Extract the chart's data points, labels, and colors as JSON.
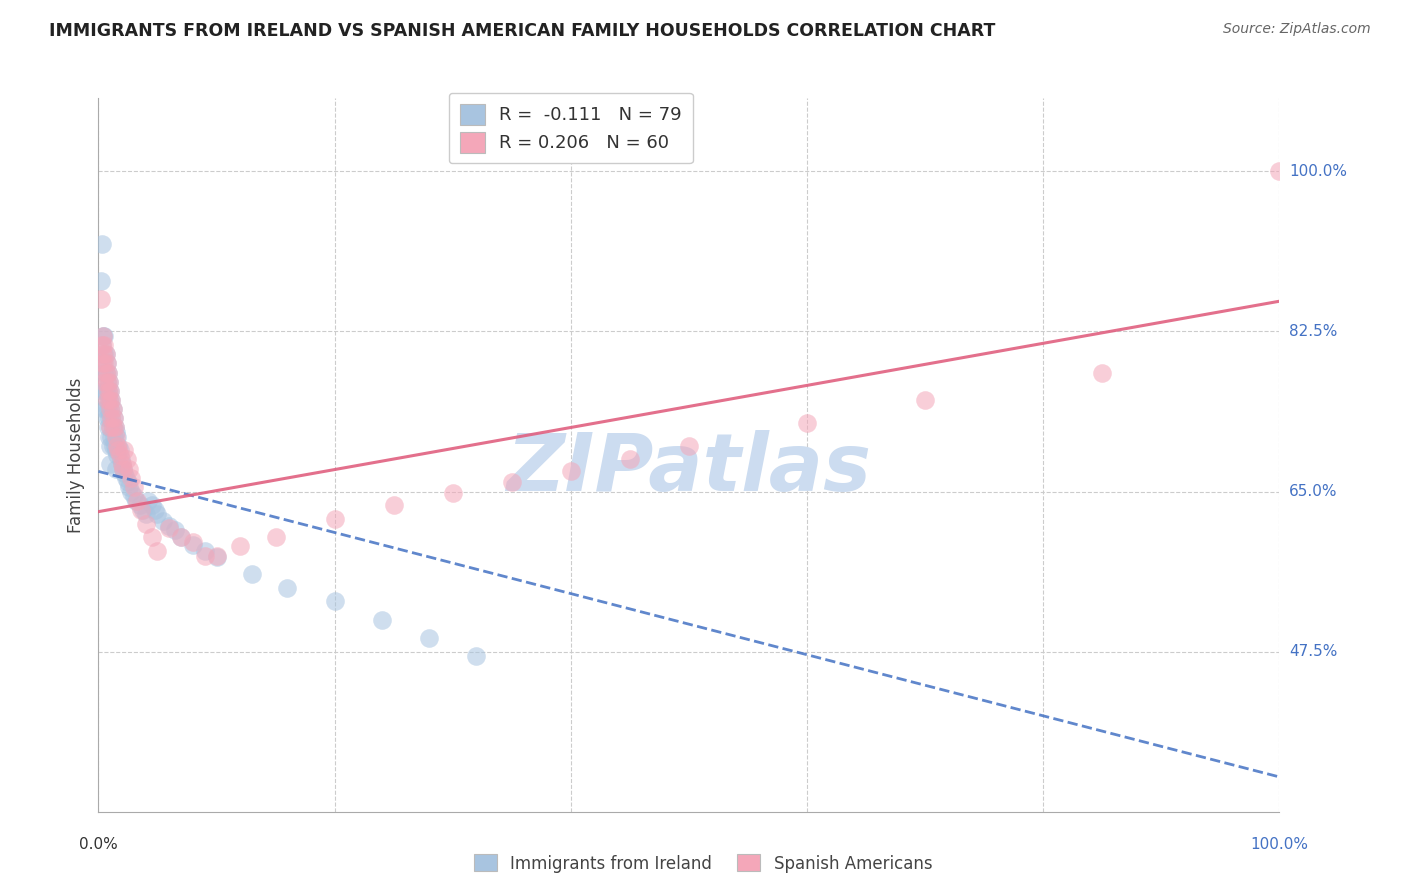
{
  "title": "IMMIGRANTS FROM IRELAND VS SPANISH AMERICAN FAMILY HOUSEHOLDS CORRELATION CHART",
  "source": "Source: ZipAtlas.com",
  "ylabel": "Family Households",
  "yticks": [
    "100.0%",
    "82.5%",
    "65.0%",
    "47.5%"
  ],
  "ytick_vals": [
    1.0,
    0.825,
    0.65,
    0.475
  ],
  "xlim": [
    0.0,
    1.0
  ],
  "ylim": [
    0.3,
    1.08
  ],
  "ireland_color": "#a8c4e0",
  "spanish_color": "#f4a7b9",
  "ireland_line_color": "#4472c4",
  "spanish_line_color": "#e06080",
  "watermark": "ZIPatlas",
  "watermark_color": "#ccdcf0",
  "ireland_line_x0": 0.0,
  "ireland_line_y0": 0.672,
  "ireland_line_x1": 1.0,
  "ireland_line_y1": 0.338,
  "spanish_line_x0": 0.0,
  "spanish_line_y0": 0.628,
  "spanish_line_x1": 1.0,
  "spanish_line_y1": 0.858,
  "ireland_pts_x": [
    0.002,
    0.003,
    0.003,
    0.004,
    0.004,
    0.004,
    0.005,
    0.005,
    0.005,
    0.005,
    0.005,
    0.006,
    0.006,
    0.006,
    0.006,
    0.007,
    0.007,
    0.007,
    0.007,
    0.008,
    0.008,
    0.008,
    0.008,
    0.009,
    0.009,
    0.009,
    0.009,
    0.01,
    0.01,
    0.01,
    0.01,
    0.01,
    0.011,
    0.011,
    0.011,
    0.012,
    0.012,
    0.012,
    0.013,
    0.013,
    0.014,
    0.014,
    0.015,
    0.015,
    0.015,
    0.016,
    0.016,
    0.017,
    0.018,
    0.019,
    0.02,
    0.021,
    0.022,
    0.023,
    0.025,
    0.026,
    0.028,
    0.03,
    0.032,
    0.035,
    0.038,
    0.04,
    0.042,
    0.045,
    0.048,
    0.05,
    0.055,
    0.06,
    0.065,
    0.07,
    0.08,
    0.09,
    0.1,
    0.13,
    0.16,
    0.2,
    0.24,
    0.28,
    0.32
  ],
  "ireland_pts_y": [
    0.88,
    0.92,
    0.81,
    0.82,
    0.79,
    0.76,
    0.82,
    0.8,
    0.78,
    0.76,
    0.74,
    0.8,
    0.78,
    0.76,
    0.74,
    0.79,
    0.77,
    0.75,
    0.73,
    0.78,
    0.76,
    0.74,
    0.72,
    0.77,
    0.75,
    0.73,
    0.71,
    0.76,
    0.74,
    0.72,
    0.7,
    0.68,
    0.75,
    0.73,
    0.71,
    0.74,
    0.72,
    0.7,
    0.73,
    0.71,
    0.72,
    0.7,
    0.715,
    0.695,
    0.675,
    0.71,
    0.69,
    0.7,
    0.695,
    0.685,
    0.68,
    0.675,
    0.67,
    0.665,
    0.66,
    0.655,
    0.65,
    0.645,
    0.64,
    0.635,
    0.63,
    0.625,
    0.64,
    0.635,
    0.63,
    0.625,
    0.618,
    0.612,
    0.608,
    0.6,
    0.592,
    0.585,
    0.578,
    0.56,
    0.545,
    0.53,
    0.51,
    0.49,
    0.47
  ],
  "spanish_pts_x": [
    0.002,
    0.003,
    0.003,
    0.004,
    0.004,
    0.005,
    0.005,
    0.005,
    0.006,
    0.006,
    0.007,
    0.007,
    0.007,
    0.008,
    0.008,
    0.009,
    0.009,
    0.01,
    0.01,
    0.01,
    0.011,
    0.011,
    0.012,
    0.012,
    0.013,
    0.014,
    0.015,
    0.016,
    0.017,
    0.018,
    0.02,
    0.021,
    0.022,
    0.024,
    0.026,
    0.028,
    0.03,
    0.033,
    0.036,
    0.04,
    0.045,
    0.05,
    0.06,
    0.07,
    0.08,
    0.09,
    0.1,
    0.12,
    0.15,
    0.2,
    0.25,
    0.3,
    0.35,
    0.4,
    0.45,
    0.5,
    0.6,
    0.7,
    0.85,
    1.0
  ],
  "spanish_pts_y": [
    0.86,
    0.81,
    0.79,
    0.82,
    0.8,
    0.81,
    0.79,
    0.77,
    0.8,
    0.78,
    0.79,
    0.77,
    0.75,
    0.78,
    0.76,
    0.77,
    0.75,
    0.76,
    0.74,
    0.72,
    0.75,
    0.73,
    0.74,
    0.72,
    0.73,
    0.72,
    0.71,
    0.7,
    0.695,
    0.69,
    0.68,
    0.675,
    0.695,
    0.685,
    0.675,
    0.665,
    0.655,
    0.64,
    0.63,
    0.615,
    0.6,
    0.585,
    0.61,
    0.6,
    0.595,
    0.58,
    0.58,
    0.59,
    0.6,
    0.62,
    0.635,
    0.648,
    0.66,
    0.672,
    0.685,
    0.7,
    0.725,
    0.75,
    0.78,
    1.0
  ]
}
